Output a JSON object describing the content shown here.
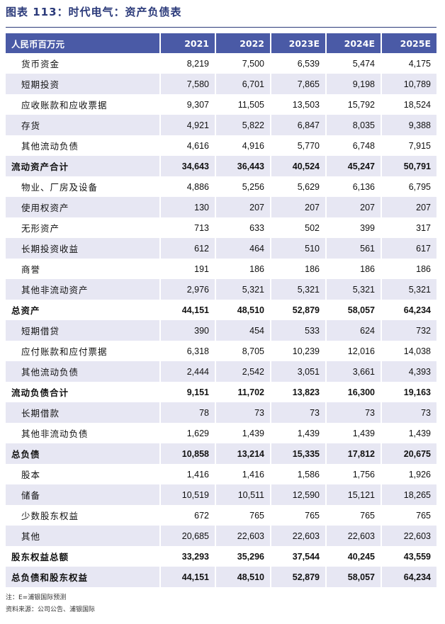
{
  "title": "图表 113：时代电气：资产负债表",
  "table": {
    "header": [
      "人民币百万元",
      "2021",
      "2022",
      "2023E",
      "2024E",
      "2025E"
    ],
    "rows": [
      {
        "cells": [
          "货币资金",
          "8,219",
          "7,500",
          "6,539",
          "5,474",
          "4,175"
        ],
        "bold": false
      },
      {
        "cells": [
          "短期投资",
          "7,580",
          "6,701",
          "7,865",
          "9,198",
          "10,789"
        ],
        "bold": false
      },
      {
        "cells": [
          "应收账款和应收票据",
          "9,307",
          "11,505",
          "13,503",
          "15,792",
          "18,524"
        ],
        "bold": false
      },
      {
        "cells": [
          "存货",
          "4,921",
          "5,822",
          "6,847",
          "8,035",
          "9,388"
        ],
        "bold": false
      },
      {
        "cells": [
          "其他流动负债",
          "4,616",
          "4,916",
          "5,770",
          "6,748",
          "7,915"
        ],
        "bold": false
      },
      {
        "cells": [
          "流动资产合计",
          "34,643",
          "36,443",
          "40,524",
          "45,247",
          "50,791"
        ],
        "bold": true
      },
      {
        "cells": [
          "物业、厂房及设备",
          "4,886",
          "5,256",
          "5,629",
          "6,136",
          "6,795"
        ],
        "bold": false
      },
      {
        "cells": [
          "使用权资产",
          "130",
          "207",
          "207",
          "207",
          "207"
        ],
        "bold": false
      },
      {
        "cells": [
          "无形资产",
          "713",
          "633",
          "502",
          "399",
          "317"
        ],
        "bold": false
      },
      {
        "cells": [
          "长期投资收益",
          "612",
          "464",
          "510",
          "561",
          "617"
        ],
        "bold": false
      },
      {
        "cells": [
          "商誉",
          "191",
          "186",
          "186",
          "186",
          "186"
        ],
        "bold": false
      },
      {
        "cells": [
          "其他非流动资产",
          "2,976",
          "5,321",
          "5,321",
          "5,321",
          "5,321"
        ],
        "bold": false
      },
      {
        "cells": [
          "总资产",
          "44,151",
          "48,510",
          "52,879",
          "58,057",
          "64,234"
        ],
        "bold": true
      },
      {
        "cells": [
          "短期借贷",
          "390",
          "454",
          "533",
          "624",
          "732"
        ],
        "bold": false
      },
      {
        "cells": [
          "应付账款和应付票据",
          "6,318",
          "8,705",
          "10,239",
          "12,016",
          "14,038"
        ],
        "bold": false
      },
      {
        "cells": [
          "其他流动负债",
          "2,444",
          "2,542",
          "3,051",
          "3,661",
          "4,393"
        ],
        "bold": false
      },
      {
        "cells": [
          "流动负债合计",
          "9,151",
          "11,702",
          "13,823",
          "16,300",
          "19,163"
        ],
        "bold": true
      },
      {
        "cells": [
          "长期借款",
          "78",
          "73",
          "73",
          "73",
          "73"
        ],
        "bold": false
      },
      {
        "cells": [
          "其他非流动负债",
          "1,629",
          "1,439",
          "1,439",
          "1,439",
          "1,439"
        ],
        "bold": false
      },
      {
        "cells": [
          "总负债",
          "10,858",
          "13,214",
          "15,335",
          "17,812",
          "20,675"
        ],
        "bold": true
      },
      {
        "cells": [
          "股本",
          "1,416",
          "1,416",
          "1,586",
          "1,756",
          "1,926"
        ],
        "bold": false
      },
      {
        "cells": [
          "储备",
          "10,519",
          "10,511",
          "12,590",
          "15,121",
          "18,265"
        ],
        "bold": false
      },
      {
        "cells": [
          "少数股东权益",
          "672",
          "765",
          "765",
          "765",
          "765"
        ],
        "bold": false
      },
      {
        "cells": [
          "其他",
          "20,685",
          "22,603",
          "22,603",
          "22,603",
          "22,603"
        ],
        "bold": false
      },
      {
        "cells": [
          "股东权益总额",
          "33,293",
          "35,296",
          "37,544",
          "40,245",
          "43,559"
        ],
        "bold": true
      },
      {
        "cells": [
          "总负债和股东权益",
          "44,151",
          "48,510",
          "52,879",
          "58,057",
          "64,234"
        ],
        "bold": true
      }
    ]
  },
  "notes": [
    "注：E=浦银国际预测",
    "资料来源：公司公告、浦银国际"
  ]
}
